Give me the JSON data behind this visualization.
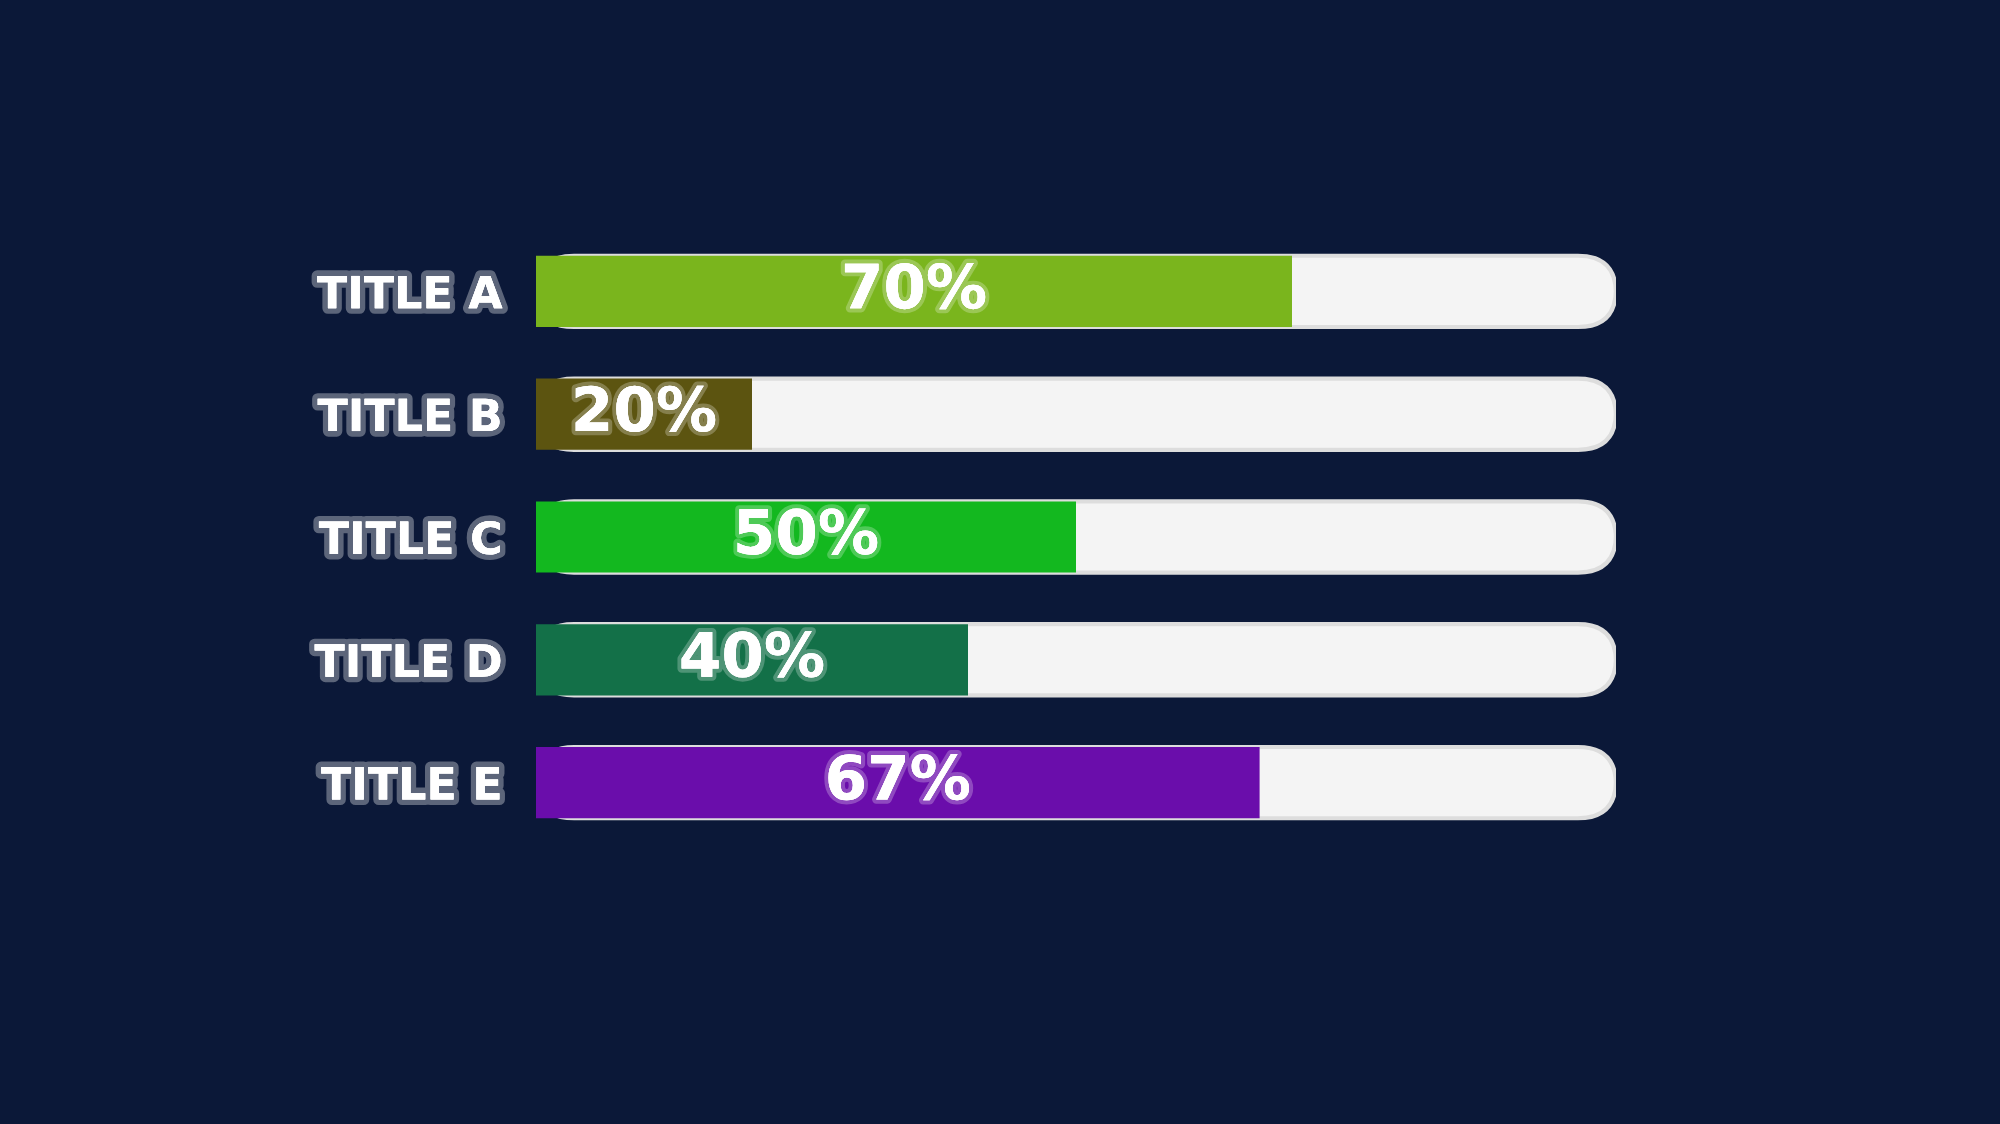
{
  "chart_data": {
    "type": "bar",
    "orientation": "horizontal",
    "categories": [
      "TITLE A",
      "TITLE B",
      "TITLE C",
      "TITLE D",
      "TITLE E"
    ],
    "values": [
      70,
      20,
      50,
      40,
      67
    ],
    "colors": [
      "#7ab51d",
      "#5c5410",
      "#13b81f",
      "#137048",
      "#6a0dab"
    ],
    "value_labels": [
      "70%",
      "20%",
      "50%",
      "40%",
      "67%"
    ],
    "xlim": [
      0,
      100
    ],
    "tick_labels": "y",
    "grid": false,
    "legend": false
  }
}
